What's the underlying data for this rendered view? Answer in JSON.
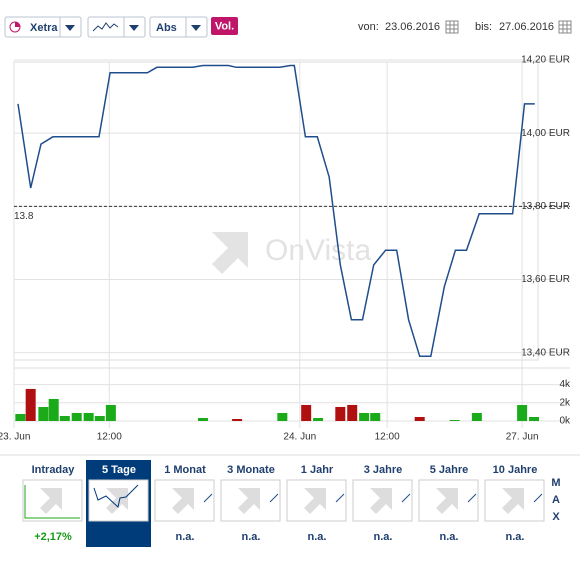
{
  "toolbar": {
    "exchange": "Xetra",
    "scale": "Abs",
    "volume": "Vol.",
    "from_label": "von:",
    "from_date": "23.06.2016",
    "to_label": "bis:",
    "to_date": "27.06.2016"
  },
  "watermark": "OnVista",
  "chart_data": [
    {
      "type": "line",
      "color": "#1f4e8c",
      "x": [
        0.5,
        2.1,
        3.4,
        4.9,
        10.7,
        12.1,
        16.8,
        18.0,
        22.5,
        23.8,
        27.0,
        28.0,
        33.5,
        34.8,
        35.3,
        36.7,
        38.2,
        39.7,
        41.1,
        42.5,
        43.9,
        45.3,
        46.8,
        48.2,
        49.7,
        51.1,
        52.5,
        54.2,
        55.6,
        57.0,
        58.6,
        62.8,
        64.3,
        65.6
      ],
      "values": [
        14.08,
        13.85,
        13.97,
        13.99,
        13.99,
        14.165,
        14.165,
        14.18,
        14.18,
        14.185,
        14.185,
        14.18,
        14.18,
        14.185,
        14.185,
        13.99,
        13.99,
        13.88,
        13.64,
        13.49,
        13.49,
        13.64,
        13.68,
        13.68,
        13.49,
        13.39,
        13.39,
        13.58,
        13.68,
        13.68,
        13.78,
        13.78,
        14.08,
        14.08
      ],
      "xlim": [
        0,
        66
      ],
      "xticks": [
        {
          "value": 0,
          "label": "23. Jun"
        },
        {
          "value": 12,
          "label": "12:00"
        },
        {
          "value": 36,
          "label": "24. Jun"
        },
        {
          "value": 47,
          "label": "12:00"
        },
        {
          "value": 64,
          "label": "27. Jun"
        }
      ],
      "ylim": [
        13.38,
        14.2
      ],
      "yticks": [
        {
          "value": 14.2,
          "label": "14,20 EUR"
        },
        {
          "value": 14.0,
          "label": "14,00 EUR"
        },
        {
          "value": 13.8,
          "label": "13,80 EUR"
        },
        {
          "value": 13.6,
          "label": "13,60 EUR"
        },
        {
          "value": 13.4,
          "label": "13,40 EUR"
        }
      ],
      "reference_line": 13.8,
      "grid": true
    },
    {
      "type": "bar",
      "x": [
        0.8,
        2.1,
        3.7,
        5.0,
        6.4,
        7.9,
        9.4,
        10.8,
        12.2,
        23.8,
        28.1,
        33.8,
        36.8,
        38.3,
        41.1,
        42.6,
        44.1,
        45.5,
        51.1,
        55.5,
        58.3,
        64.0,
        65.5
      ],
      "values": [
        770,
        3520,
        1540,
        2420,
        550,
        880,
        880,
        550,
        1760,
        330,
        220,
        880,
        1760,
        330,
        1540,
        1760,
        880,
        880,
        440,
        110,
        880,
        1760,
        440
      ],
      "colors": [
        "#1aaa1a",
        "#b01010",
        "#1aaa1a",
        "#1aaa1a",
        "#1aaa1a",
        "#1aaa1a",
        "#1aaa1a",
        "#1aaa1a",
        "#1aaa1a",
        "#1aaa1a",
        "#b01010",
        "#1aaa1a",
        "#b01010",
        "#1aaa1a",
        "#b01010",
        "#b01010",
        "#1aaa1a",
        "#1aaa1a",
        "#b01010",
        "#1aaa1a",
        "#1aaa1a",
        "#1aaa1a",
        "#1aaa1a"
      ],
      "xlim": [
        0,
        66
      ],
      "ylim": [
        0,
        5600
      ],
      "yticks": [
        {
          "value": 4000,
          "label": "4k"
        },
        {
          "value": 2000,
          "label": "2k"
        },
        {
          "value": 0,
          "label": "0k"
        }
      ]
    }
  ],
  "periods": [
    {
      "label": "Intraday",
      "change": "+2,17%"
    },
    {
      "label": "5 Tage"
    },
    {
      "label": "1 Monat",
      "change": "n.a."
    },
    {
      "label": "3 Monate",
      "change": "n.a."
    },
    {
      "label": "1 Jahr",
      "change": "n.a."
    },
    {
      "label": "3 Jahre",
      "change": "n.a."
    },
    {
      "label": "5 Jahre",
      "change": "n.a."
    },
    {
      "label": "10 Jahre",
      "change": "n.a."
    }
  ],
  "selected_period": 1,
  "max_letters": [
    "M",
    "A",
    "X"
  ]
}
